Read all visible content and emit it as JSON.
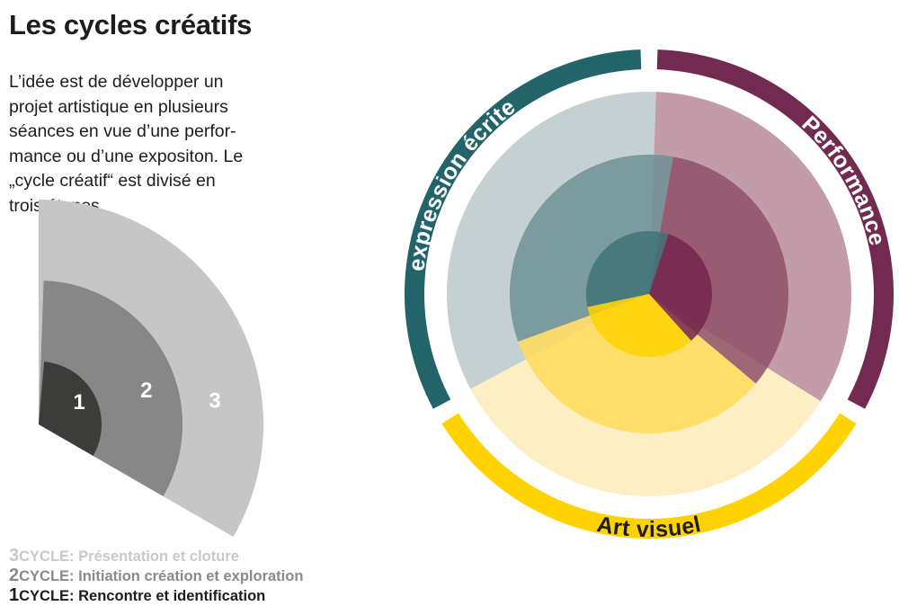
{
  "header": {
    "title": "Les cycles créatifs"
  },
  "intro": {
    "lines": [
      "L’idée est de développer un",
      "projet artistique en plusieurs",
      "séances en vue d’une perfor-",
      "mance ou d’une expositon. Le",
      "„cycle créatif“ est divisé en",
      "trois étapes."
    ]
  },
  "legend_fan": {
    "numbers": [
      "1",
      "2",
      "3"
    ],
    "colors": [
      "#3c3c3b",
      "#878787",
      "#c6c6c6"
    ]
  },
  "legend_list": [
    {
      "number": "3",
      "prefix": "CYCLE:",
      "text": "Présentation et cloture"
    },
    {
      "number": "2",
      "prefix": "CYCLE:",
      "text": "Initiation création et exploration"
    },
    {
      "number": "1",
      "prefix": "CYCLE:",
      "text": "Rencontre et identification"
    }
  ],
  "wheel": {
    "segments": [
      {
        "label": "expression écrite",
        "color": "#23646b",
        "tint_outer": "#c4d0d1",
        "tint_mid": "#6e9295",
        "tint_inner": "#3e7377"
      },
      {
        "label": "Performance",
        "color": "#732a51",
        "tint_outer": "#c39ca9",
        "tint_mid": "#8f5069",
        "tint_inner": "#73264d"
      },
      {
        "label": "Art visuel",
        "color": "#ffd200",
        "tint_outer": "#fdefc3",
        "tint_mid": "#ffdc5a",
        "tint_inner": "#ffd200"
      }
    ],
    "label_colors": [
      "#ffffff",
      "#ffffff",
      "#1d1d1b"
    ]
  }
}
